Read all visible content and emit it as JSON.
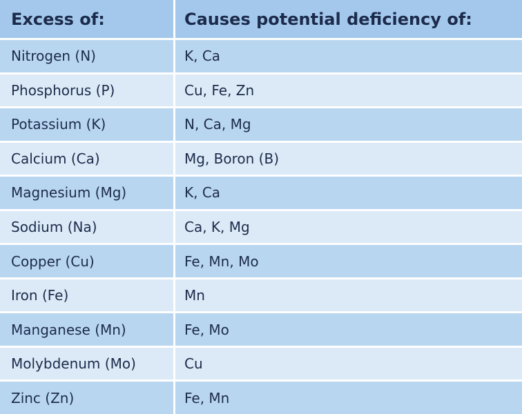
{
  "table": {
    "header": [
      "Excess of:",
      "Causes potential deficiency of:"
    ],
    "rows": [
      [
        "Nitrogen (N)",
        "K, Ca"
      ],
      [
        "Phosphorus (P)",
        "Cu, Fe, Zn"
      ],
      [
        "Potassium (K)",
        "N, Ca, Mg"
      ],
      [
        "Calcium (Ca)",
        "Mg, Boron (B)"
      ],
      [
        "Magnesium (Mg)",
        "K, Ca"
      ],
      [
        "Sodium (Na)",
        "Ca, K, Mg"
      ],
      [
        "Copper (Cu)",
        "Fe, Mn, Mo"
      ],
      [
        "Iron (Fe)",
        "Mn"
      ],
      [
        "Manganese (Mn)",
        "Fe, Mo"
      ],
      [
        "Molybdenum (Mo)",
        "Cu"
      ],
      [
        "Zinc (Zn)",
        "Fe, Mn"
      ]
    ]
  }
}
